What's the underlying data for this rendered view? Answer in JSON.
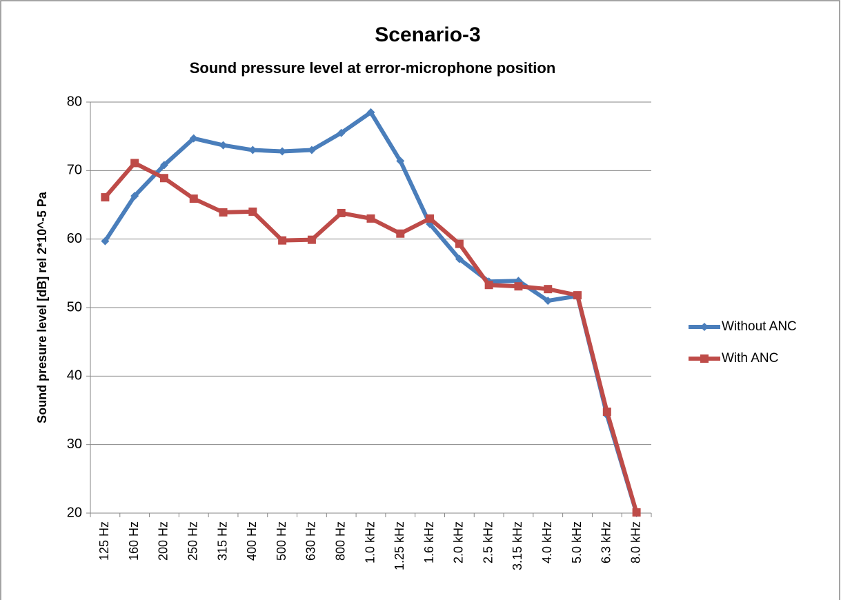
{
  "chart_data": {
    "type": "line",
    "title": "Scenario-3",
    "subtitle": "Sound pressure level at error-microphone position",
    "y_label": "Sound presure level [dB] rel 2*10^-5 Pa",
    "categories": [
      "125 Hz",
      "160 Hz",
      "200 Hz",
      "250 Hz",
      "315 Hz",
      "400 Hz",
      "500 Hz",
      "630 Hz",
      "800 Hz",
      "1.0 kHz",
      "1.25 kHz",
      "1.6 kHz",
      "2.0 kHz",
      "2.5 kHz",
      "3.15 kHz",
      "4.0 kHz",
      "5.0 kHz",
      "6.3 kHz",
      "8.0 kHz"
    ],
    "series": [
      {
        "name": "Without ANC",
        "color": "#4a7ebb",
        "marker": "diamond",
        "values": [
          59.7,
          66.3,
          70.8,
          74.7,
          73.7,
          73.0,
          72.8,
          73.0,
          75.5,
          78.5,
          71.4,
          62.2,
          57.1,
          53.8,
          53.9,
          51.0,
          51.7,
          34.3,
          20.0
        ]
      },
      {
        "name": "With ANC",
        "color": "#be4b48",
        "marker": "square",
        "values": [
          66.1,
          71.1,
          68.9,
          65.9,
          63.9,
          64.0,
          59.8,
          59.9,
          63.8,
          63.0,
          60.8,
          63.0,
          59.3,
          53.3,
          53.1,
          52.7,
          51.8,
          34.8,
          20.1
        ]
      }
    ],
    "ylim": [
      20,
      80
    ],
    "yticks": [
      20,
      30,
      40,
      50,
      60,
      70,
      80
    ],
    "grid": true,
    "legend": "right"
  }
}
